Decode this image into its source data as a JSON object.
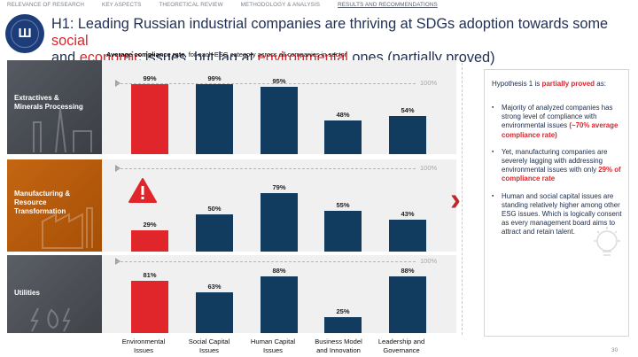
{
  "nav": {
    "items": [
      "RELEVANCE OF RESEARCH",
      "KEY ASPECTS",
      "THEORETICAL REVIEW",
      "METHODOLOGY & ANALYSIS",
      "RESULTS AND RECOMMENDATIONS"
    ]
  },
  "title": {
    "part1": "H1: Leading Russian industrial companies are thriving at SDGs adoption towards some ",
    "social": "social",
    "part2": "and ",
    "economic": "economic",
    "part3": " issues, but lag at ",
    "environmental": "environmental",
    "part4": " ones (partially proved)"
  },
  "subtitle": {
    "bold": "Average compliance rate,",
    "rest": " for each ESG category across all companies in sector"
  },
  "sectors": [
    {
      "label_line1": "Extractives &",
      "label_line2": "Minerals Processing"
    },
    {
      "label_line1": "Manufacturing &",
      "label_line2": "Resource",
      "label_line3": "Transformation"
    },
    {
      "label_line1": "Utilities"
    }
  ],
  "ref_label": "100%",
  "chart_data": {
    "type": "bar",
    "categories": [
      "Environmental Issues",
      "Social Capital Issues",
      "Human Capital Issues",
      "Business Model and Innovation",
      "Leadership and Governance"
    ],
    "ylim": [
      0,
      100
    ],
    "series": [
      {
        "name": "Extractives & Minerals Processing",
        "values": [
          99,
          99,
          95,
          48,
          54
        ]
      },
      {
        "name": "Manufacturing & Resource Transformation",
        "values": [
          29,
          50,
          79,
          55,
          43
        ]
      },
      {
        "name": "Utilities",
        "values": [
          81,
          63,
          88,
          25,
          88
        ]
      }
    ],
    "value_labels": [
      [
        "99%",
        "99%",
        "95%",
        "48%",
        "54%"
      ],
      [
        "29%",
        "50%",
        "79%",
        "55%",
        "43%"
      ],
      [
        "81%",
        "63%",
        "88%",
        "25%",
        "88%"
      ]
    ],
    "colors": {
      "environmental": "#e0262a",
      "other": "#123c5f"
    }
  },
  "categories_display": [
    {
      "line1": "Environmental",
      "line2": "Issues"
    },
    {
      "line1": "Social Capital",
      "line2": "Issues"
    },
    {
      "line1": "Human Capital",
      "line2": "Issues"
    },
    {
      "line1": "Business Model",
      "line2": "and Innovation"
    },
    {
      "line1": "Leadership and",
      "line2": "Governance"
    }
  ],
  "hypothesis": {
    "prefix": "Hypothesis 1 is ",
    "status": "partially proved",
    "suffix": " as:",
    "bullets": [
      {
        "text": "Majority of analyzed companies has strong level of compliance with environmental issues ",
        "highlight": "(~70% average compliance rate)"
      },
      {
        "text": "Yet, manufacturing companies are severely lagging with addressing environmental issues with only ",
        "highlight": "29% of compliance rate"
      },
      {
        "text": "Human and social capital issues are standing relatively higher among other ESG issues. Which is logically consent as every management board aims to attract and retain talent.",
        "highlight": ""
      }
    ]
  },
  "page_number": "30",
  "icons": [
    "hse-logo",
    "warning-icon",
    "chevron-right-icon",
    "lightbulb-icon"
  ]
}
